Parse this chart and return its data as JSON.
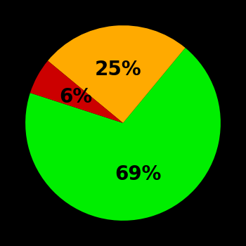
{
  "slices": [
    69,
    25,
    6
  ],
  "colors": [
    "#00ee00",
    "#ffaa00",
    "#cc0000"
  ],
  "labels": [
    "69%",
    "25%",
    "6%"
  ],
  "background_color": "#000000",
  "label_fontsize": 20,
  "label_color": "#000000",
  "startangle": 162,
  "figsize": [
    3.5,
    3.5
  ],
  "dpi": 100
}
